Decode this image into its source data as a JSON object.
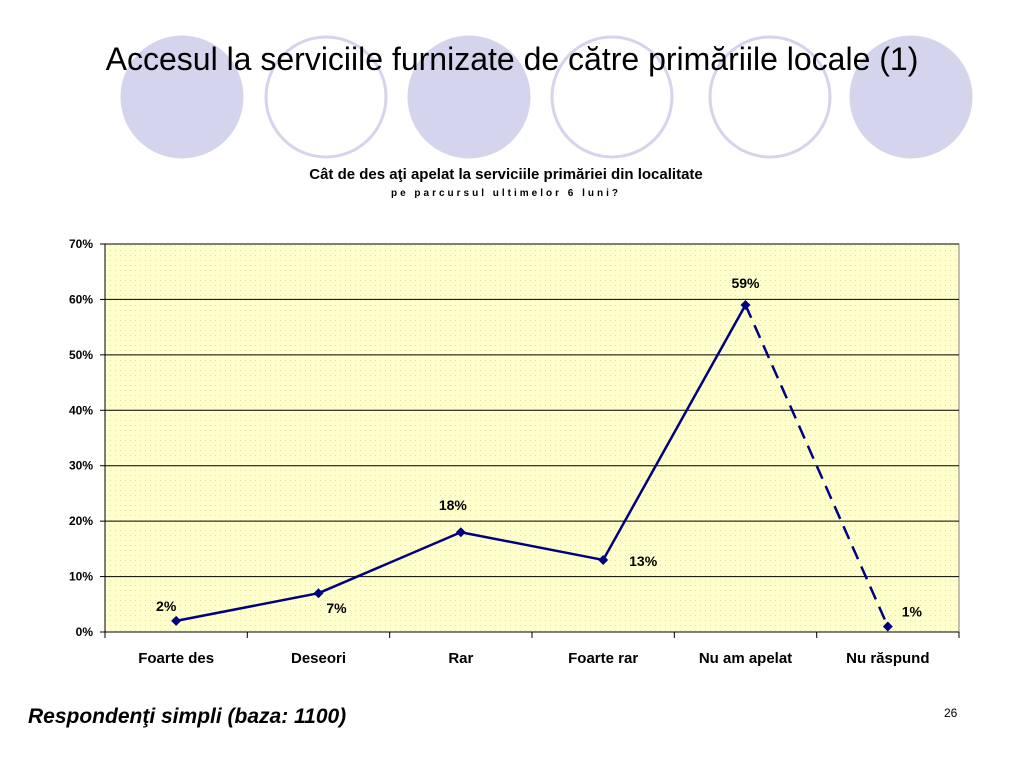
{
  "slide": {
    "title": "Accesul la serviciile furnizate de către primăriile locale (1)",
    "footer_note": "Respondenţi simpli (baza: 1100)",
    "page_number": "26",
    "decor_circles": [
      {
        "fill": "#d4d4ec",
        "stroke": "#d4d4ec"
      },
      {
        "fill": "#ffffff",
        "stroke": "#d4d4ec"
      },
      {
        "fill": "#d4d4ec",
        "stroke": "#d4d4ec"
      },
      {
        "fill": "#ffffff",
        "stroke": "#d4d4ec"
      },
      {
        "fill": "#d4d4ec",
        "stroke": "#d4d4ec"
      }
    ]
  },
  "chart_data": {
    "type": "line",
    "title": "Cât de des aţi apelat la serviciile primăriei din localitate",
    "subtitle": "pe parcursul ultimelor 6 luni?",
    "categories": [
      "Foarte des",
      "Deseori",
      "Rar",
      "Foarte rar",
      "Nu am apelat",
      "Nu răspund"
    ],
    "values": [
      2,
      7,
      18,
      13,
      59,
      1
    ],
    "data_labels": [
      "2%",
      "7%",
      "18%",
      "13%",
      "59%",
      "1%"
    ],
    "dashed_last_segment": true,
    "yticks": [
      "0%",
      "10%",
      "20%",
      "30%",
      "40%",
      "50%",
      "60%",
      "70%"
    ],
    "ylim": [
      0,
      70
    ],
    "ystep": 10,
    "grid": true,
    "plot_background": "#ffffcc",
    "line_color": "#000080",
    "marker": "diamond"
  }
}
